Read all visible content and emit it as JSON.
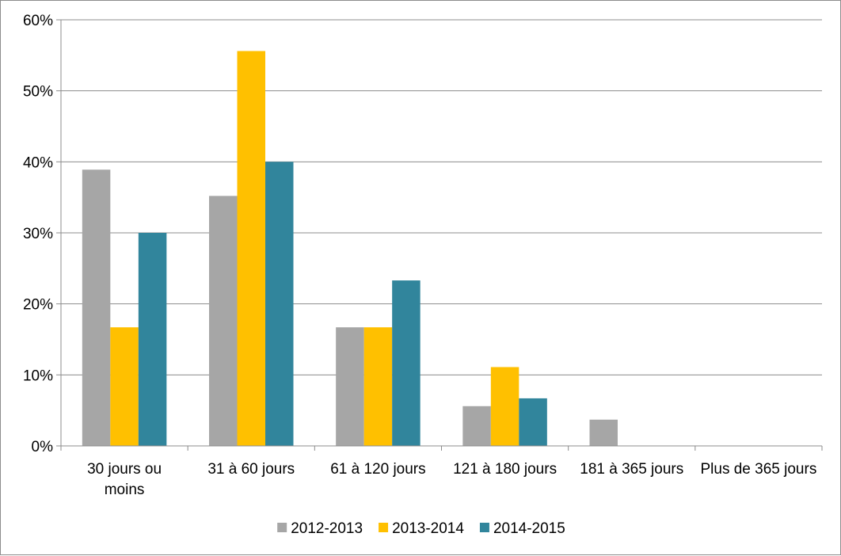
{
  "chart_data": {
    "type": "bar",
    "categories": [
      [
        "30 jours ou",
        "moins"
      ],
      [
        "31 à 60 jours"
      ],
      [
        "61 à 120 jours"
      ],
      [
        "121 à 180 jours"
      ],
      [
        "181 à 365 jours"
      ],
      [
        "Plus de 365 jours"
      ]
    ],
    "series": [
      {
        "name": "2012-2013",
        "color": "#a6a6a6",
        "values": [
          38.9,
          35.2,
          16.7,
          5.6,
          3.7,
          0
        ]
      },
      {
        "name": "2013-2014",
        "color": "#ffc000",
        "values": [
          16.7,
          55.6,
          16.7,
          11.1,
          0,
          0
        ]
      },
      {
        "name": "2014-2015",
        "color": "#31859c",
        "values": [
          30.0,
          40.0,
          23.3,
          6.7,
          0,
          0
        ]
      }
    ],
    "ylim": [
      0,
      60
    ],
    "yticks": [
      0,
      10,
      20,
      30,
      40,
      50,
      60
    ],
    "ytick_labels": [
      "0%",
      "10%",
      "20%",
      "30%",
      "40%",
      "50%",
      "60%"
    ],
    "grid": true,
    "gridline_color": "#8c8c8c",
    "legend_position": "bottom",
    "title": "",
    "xlabel": "",
    "ylabel": ""
  }
}
